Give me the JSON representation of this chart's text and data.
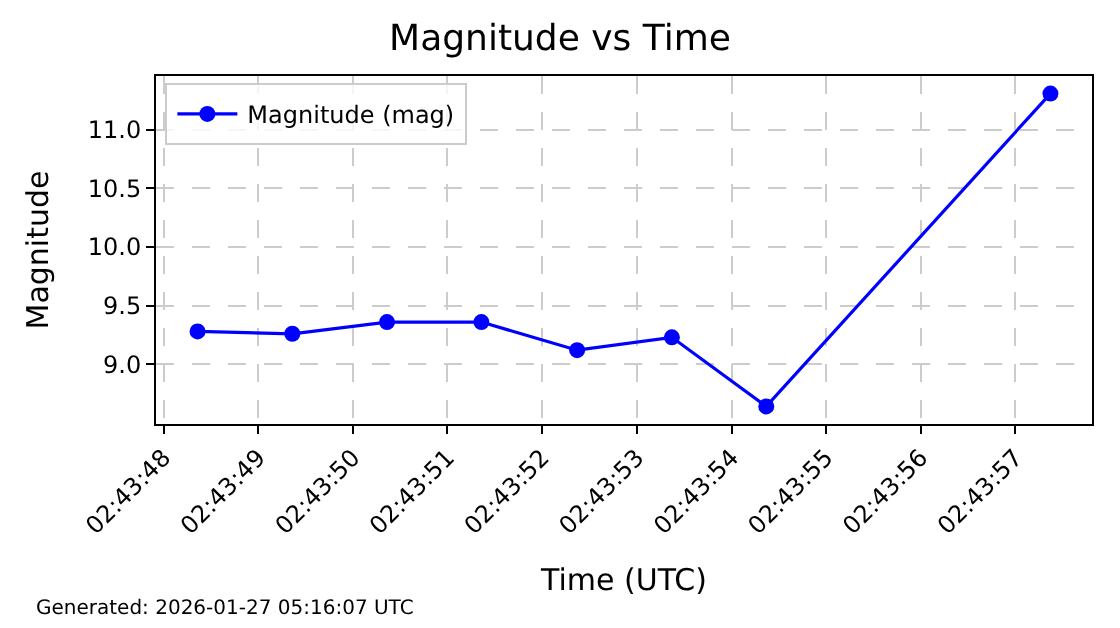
{
  "chart_data": {
    "type": "line",
    "title": "Magnitude vs Time",
    "xlabel": "Time (UTC)",
    "ylabel": "Magnitude",
    "annotations": [
      "Generated: 2026-01-27 05:16:07 UTC"
    ],
    "x": [
      2.7301,
      2.730378,
      2.730656,
      2.730933,
      2.731214,
      2.731492,
      2.731769,
      2.732603
    ],
    "series": [
      {
        "name": "Magnitude (mag)",
        "color": "#0000ff",
        "values": [
          9.28,
          9.26,
          9.36,
          9.36,
          9.12,
          9.23,
          8.64,
          11.31
        ]
      }
    ],
    "xlim": [
      2.729978,
      2.732725
    ],
    "xticks": [
      {
        "value": 2.73,
        "label": "02:43:48"
      },
      {
        "value": 2.730278,
        "label": "02:43:49"
      },
      {
        "value": 2.730556,
        "label": "02:43:50"
      },
      {
        "value": 2.730833,
        "label": "02:43:51"
      },
      {
        "value": 2.731111,
        "label": "02:43:52"
      },
      {
        "value": 2.731389,
        "label": "02:43:53"
      },
      {
        "value": 2.731667,
        "label": "02:43:54"
      },
      {
        "value": 2.731944,
        "label": "02:43:55"
      },
      {
        "value": 2.732222,
        "label": "02:43:56"
      },
      {
        "value": 2.7325,
        "label": "02:43:57"
      }
    ],
    "ylim": [
      8.49,
      11.46
    ],
    "yticks": [
      {
        "value": 9,
        "label": "9.0"
      },
      9.5,
      {
        "value": 10,
        "label": "10.0"
      },
      10.5,
      {
        "value": 11,
        "label": "11.0"
      }
    ],
    "grid": true,
    "legend": "top left",
    "marker": "circle",
    "line_style": "solid"
  }
}
